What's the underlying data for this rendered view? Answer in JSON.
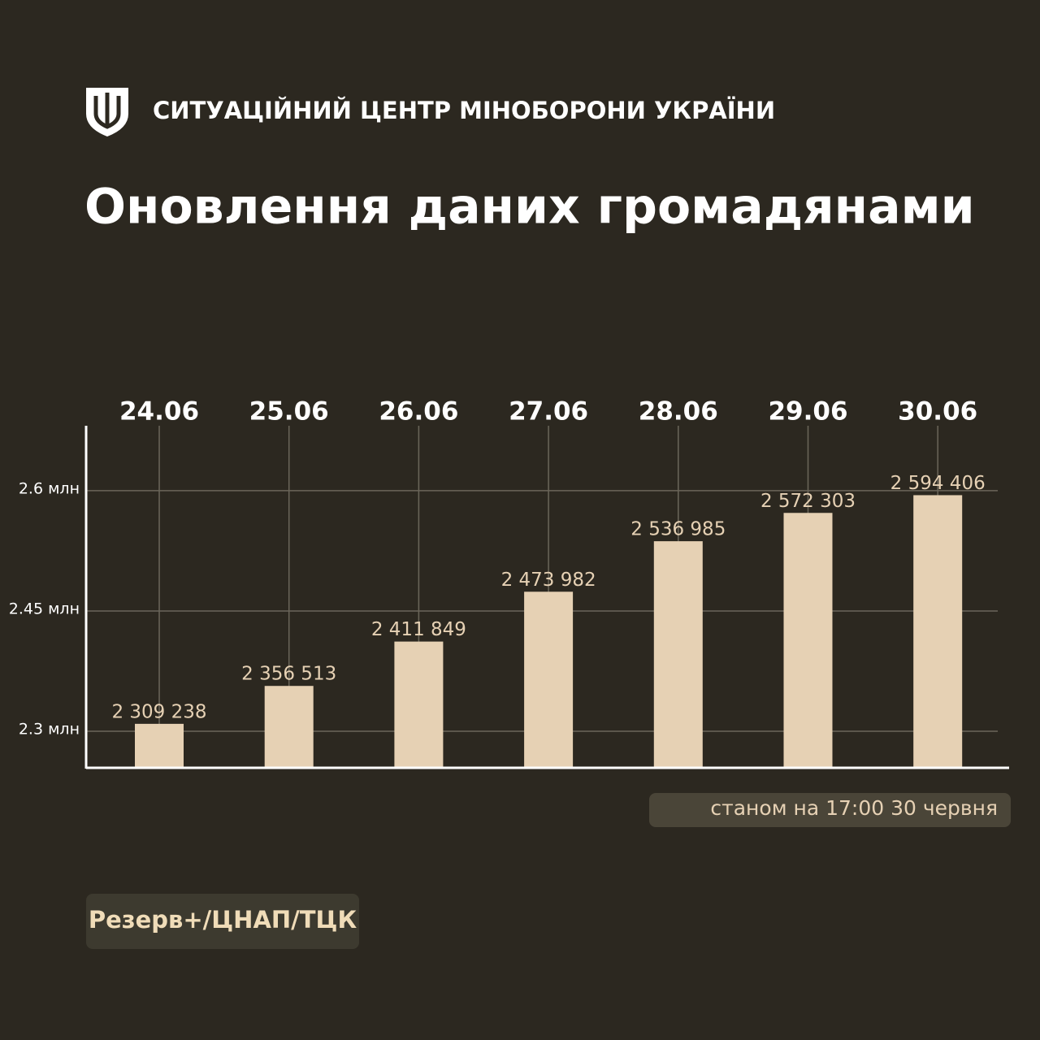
{
  "header": {
    "organization": "СИТУАЦІЙНИЙ ЦЕНТР МІНОБОРОНИ УКРАЇНИ"
  },
  "chart_data": {
    "type": "bar",
    "title": "Оновлення даних громадянами",
    "categories": [
      "24.06",
      "25.06",
      "26.06",
      "27.06",
      "28.06",
      "29.06",
      "30.06"
    ],
    "values": [
      2.309238,
      2.356513,
      2.411849,
      2.473982,
      2.536985,
      2.572303,
      2.594406
    ],
    "value_labels": [
      "2 309 238",
      "2 356 513",
      "2 411 849",
      "2 473 982",
      "2 536 985",
      "2 572 303",
      "2 594 406"
    ],
    "color": "#e6d1b4",
    "ylim": [
      2.2554,
      2.681
    ],
    "yticks": [
      {
        "value": 2.3,
        "label": "2.3 млн"
      },
      {
        "value": 2.45,
        "label": "2.45 млн"
      },
      {
        "value": 2.6,
        "label": "2.6 млн"
      }
    ],
    "grid": true,
    "note": "станом на 17:00 30 червня",
    "source": "Резерв+/ЦНАП/ТЦК"
  }
}
